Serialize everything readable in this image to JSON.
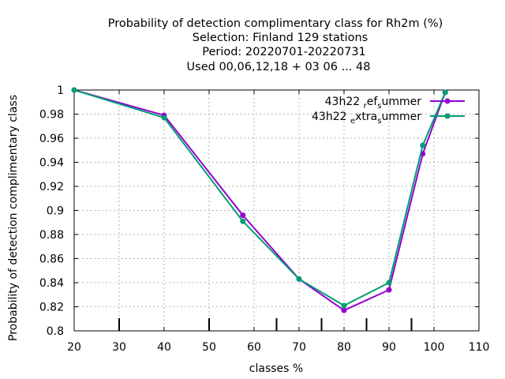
{
  "chart_data": {
    "type": "line",
    "title_lines": [
      "Probability of detection complimentary class  for Rh2m (%)",
      "Selection: Finland    129 stations",
      "Period: 20220701-20220731",
      "Used  00,06,12,18  + 03 06 ... 48"
    ],
    "xlabel": "classes %",
    "ylabel": "Probability of detection complimentary class",
    "xlim": [
      20,
      110
    ],
    "ylim": [
      0.8,
      1.0
    ],
    "xticks": [
      20,
      30,
      40,
      50,
      60,
      70,
      80,
      90,
      100,
      110
    ],
    "yticks": [
      0.8,
      0.82,
      0.84,
      0.86,
      0.88,
      0.9,
      0.92,
      0.94,
      0.96,
      0.98,
      1.0
    ],
    "ytick_labels": [
      "0.8",
      "0.82",
      "0.84",
      "0.86",
      "0.88",
      "0.9",
      "0.92",
      "0.94",
      "0.96",
      "0.98",
      "1"
    ],
    "grid": true,
    "legend_position": "top-right",
    "class_markers": [
      30,
      50,
      65,
      75,
      85,
      95
    ],
    "series": [
      {
        "legend_parts": [
          "43h22 ",
          "r",
          "ef",
          "s",
          "ummer"
        ],
        "color": "#9400d3",
        "marker": "circle",
        "x": [
          20,
          40,
          57.5,
          70,
          80,
          90,
          97.5,
          102.5
        ],
        "y": [
          1.0,
          0.979,
          0.896,
          0.843,
          0.817,
          0.834,
          0.947,
          0.998
        ]
      },
      {
        "legend_parts": [
          "43h22 ",
          "e",
          "xtra",
          "s",
          "ummer"
        ],
        "color": "#009e73",
        "marker": "circle",
        "x": [
          20,
          40,
          57.5,
          70,
          80,
          90,
          97.5,
          102.5
        ],
        "y": [
          1.0,
          0.977,
          0.891,
          0.843,
          0.821,
          0.84,
          0.954,
          0.998
        ]
      }
    ]
  }
}
